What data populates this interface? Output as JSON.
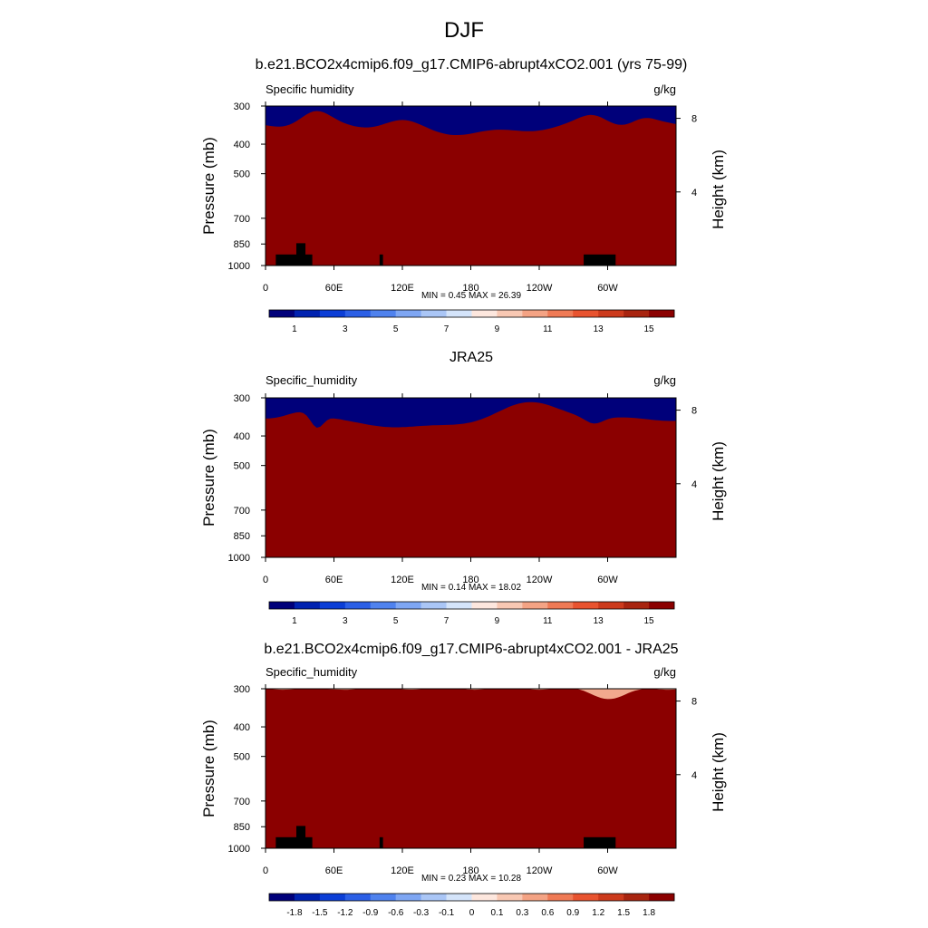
{
  "figure_title": "DJF",
  "chart_data": [
    {
      "type": "heatmap",
      "title": "b.e21.BCO2x4cmip6.f09_g17.CMIP6-abrupt4xCO2.001 (yrs 75-99)",
      "left_label": "Specific humidity",
      "units": "g/kg",
      "xlabel": "",
      "ylabel": "Pressure (mb)",
      "ylabel_right": "Height (km)",
      "x_ticks": [
        "0",
        "60E",
        "120E",
        "180",
        "120W",
        "60W"
      ],
      "x_tick_lon": [
        0,
        60,
        120,
        180,
        240,
        300
      ],
      "y_ticks": [
        "300",
        "400",
        "500",
        "700",
        "850",
        "1000"
      ],
      "y_tick_p": [
        300,
        400,
        500,
        700,
        850,
        1000
      ],
      "height_ticks": [
        "8",
        "4"
      ],
      "height_tick_km": [
        8,
        4
      ],
      "min_label": "MIN =",
      "min_value": "0.45",
      "max_label": "MAX =",
      "max_value": "26.39",
      "colorbar_labels": [
        "1",
        "3",
        "5",
        "7",
        "9",
        "11",
        "13",
        "15"
      ],
      "colorbar_levels": [
        1,
        3,
        5,
        7,
        9,
        11,
        13,
        15
      ],
      "contour_levels": [
        0.5,
        1,
        2,
        3,
        4,
        5,
        6,
        7,
        8,
        9,
        10,
        11,
        12,
        13,
        14,
        15
      ]
    },
    {
      "type": "heatmap",
      "title": "JRA25",
      "left_label": "Specific_humidity",
      "units": "g/kg",
      "xlabel": "",
      "ylabel": "Pressure (mb)",
      "ylabel_right": "Height (km)",
      "x_ticks": [
        "0",
        "60E",
        "120E",
        "180",
        "120W",
        "60W"
      ],
      "x_tick_lon": [
        0,
        60,
        120,
        180,
        240,
        300
      ],
      "y_ticks": [
        "300",
        "400",
        "500",
        "700",
        "850",
        "1000"
      ],
      "y_tick_p": [
        300,
        400,
        500,
        700,
        850,
        1000
      ],
      "height_ticks": [
        "8",
        "4"
      ],
      "height_tick_km": [
        8,
        4
      ],
      "min_label": "MIN =",
      "min_value": "0.14",
      "max_label": "MAX =",
      "max_value": "18.02",
      "colorbar_labels": [
        "1",
        "3",
        "5",
        "7",
        "9",
        "11",
        "13",
        "15"
      ],
      "colorbar_levels": [
        1,
        3,
        5,
        7,
        9,
        11,
        13,
        15
      ],
      "contour_levels": [
        0.5,
        1,
        2,
        3,
        4,
        5,
        6,
        7,
        8,
        9,
        10,
        11,
        12,
        13,
        14,
        15
      ]
    },
    {
      "type": "heatmap",
      "title": "b.e21.BCO2x4cmip6.f09_g17.CMIP6-abrupt4xCO2.001 - JRA25",
      "left_label": "Specific_humidity",
      "units": "g/kg",
      "xlabel": "",
      "ylabel": "Pressure (mb)",
      "ylabel_right": "Height (km)",
      "x_ticks": [
        "0",
        "60E",
        "120E",
        "180",
        "120W",
        "60W"
      ],
      "x_tick_lon": [
        0,
        60,
        120,
        180,
        240,
        300
      ],
      "y_ticks": [
        "300",
        "400",
        "500",
        "700",
        "850",
        "1000"
      ],
      "y_tick_p": [
        300,
        400,
        500,
        700,
        850,
        1000
      ],
      "height_ticks": [
        "8",
        "4"
      ],
      "height_tick_km": [
        8,
        4
      ],
      "min_label": "MIN =",
      "min_value": "0.23",
      "max_label": "MAX =",
      "max_value": "10.28",
      "colorbar_labels": [
        "-1.8",
        "-1.5",
        "-1.2",
        "-0.9",
        "-0.6",
        "-0.3",
        "-0.1",
        "0",
        "0.1",
        "0.3",
        "0.6",
        "0.9",
        "1.2",
        "1.5",
        "1.8"
      ],
      "colorbar_levels": [
        -1.8,
        -1.5,
        -1.2,
        -0.9,
        -0.6,
        -0.3,
        -0.1,
        0,
        0.1,
        0.3,
        0.6,
        0.9,
        1.2,
        1.5,
        1.8
      ],
      "contour_levels": [
        -1.8,
        -1.5,
        -1.2,
        -0.9,
        -0.6,
        -0.3,
        -0.1,
        0,
        0.1,
        0.3,
        0.6,
        0.9,
        1.2,
        1.5,
        1.8
      ]
    }
  ],
  "colormap": [
    "#00007a",
    "#0022b0",
    "#0b3ed6",
    "#2b5fe6",
    "#4f82ee",
    "#7ea6f3",
    "#aac6f6",
    "#d4e4fa",
    "#fde7de",
    "#f8c8b3",
    "#f4a384",
    "#ef7a55",
    "#e8532f",
    "#cc3a1c",
    "#a8240f",
    "#8b0000"
  ],
  "terrain_color": "#000000"
}
